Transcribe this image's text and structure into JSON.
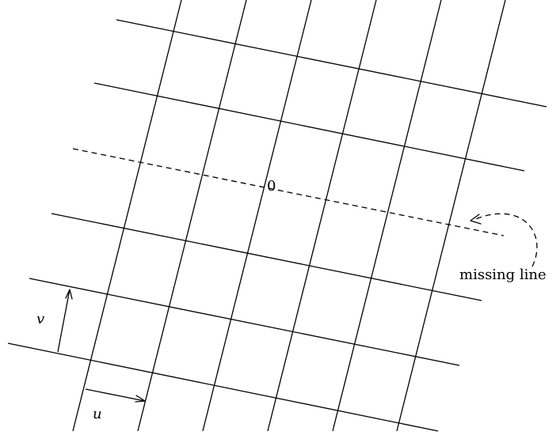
{
  "diagram": {
    "origin_label": "0",
    "u_label": "u",
    "v_label": "v",
    "annotation_label": "missing line"
  }
}
